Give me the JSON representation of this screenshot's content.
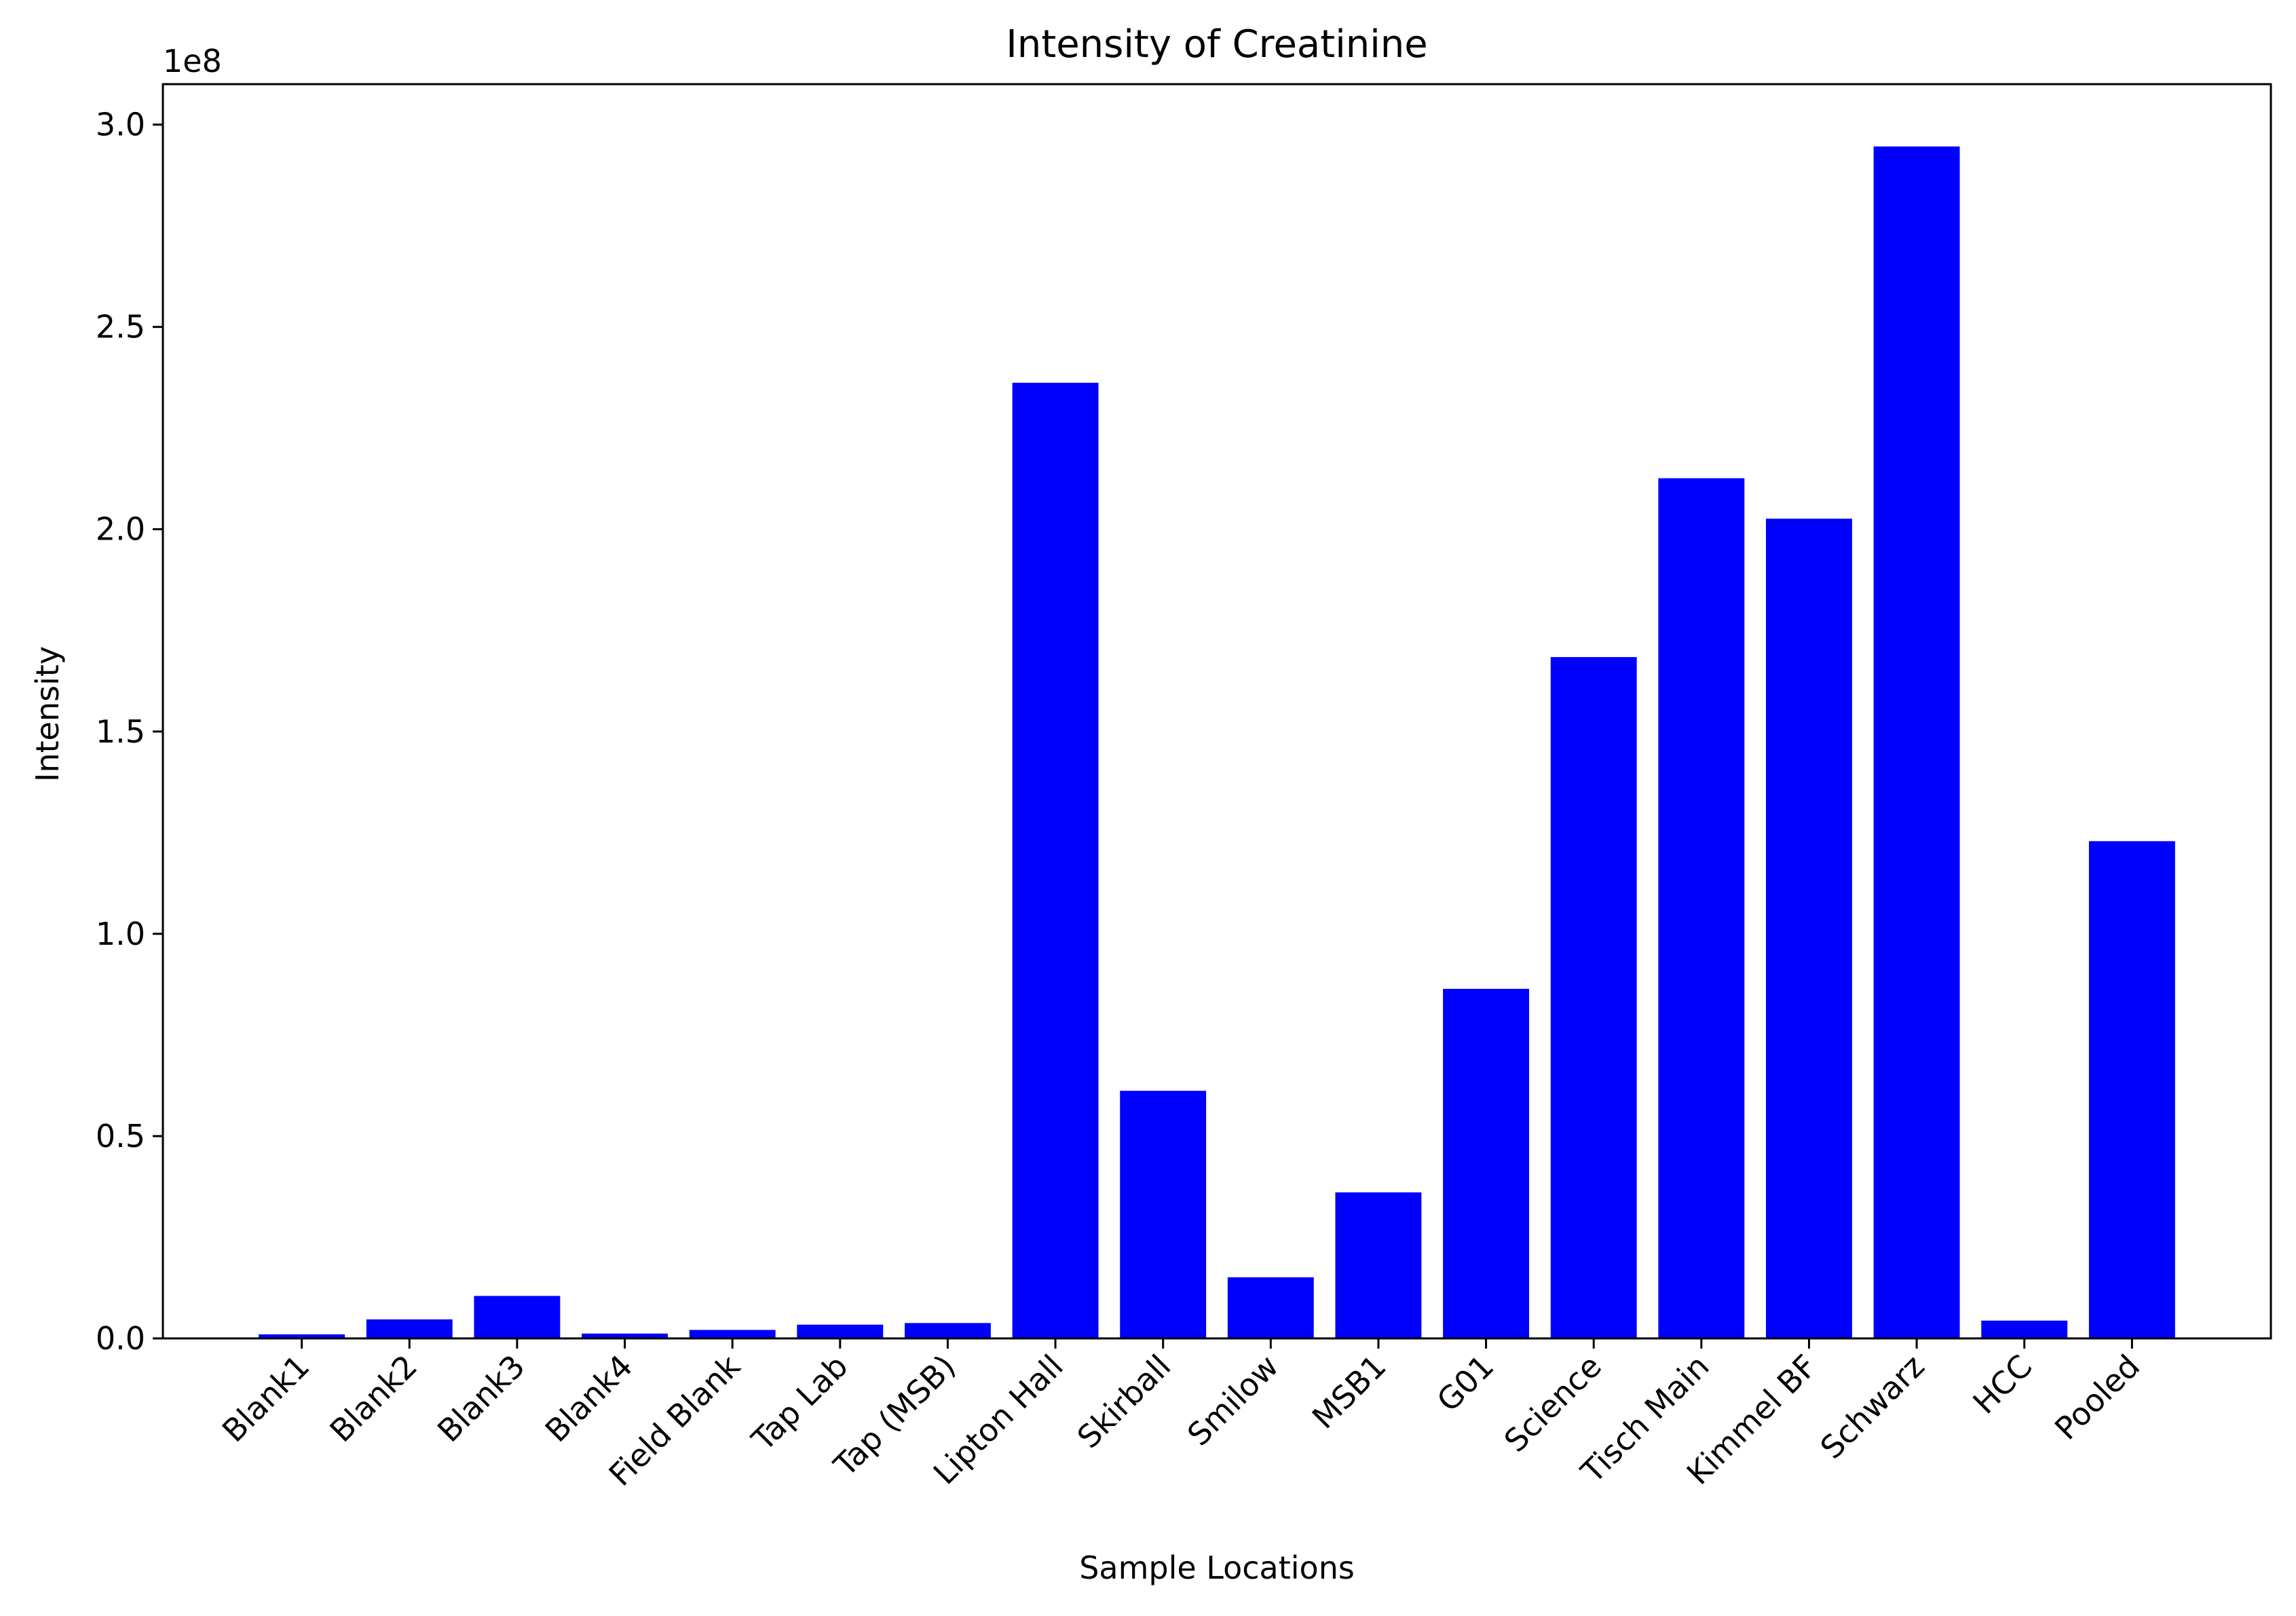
{
  "chart_data": {
    "type": "bar",
    "title": "Intensity of Creatinine",
    "xlabel": "Sample Locations",
    "ylabel": "Intensity",
    "y_offset_label": "1e8",
    "y_scale_divisor": 100000000,
    "categories": [
      "Blank1",
      "Blank2",
      "Blank3",
      "Blank4",
      "Field Blank",
      "Tap Lab",
      "Tap (MSB)",
      "Lipton Hall",
      "Skirball",
      "Smilow",
      "MSB1",
      "G01",
      "Science",
      "Tisch Main",
      "Kimmel BF",
      "Schwarz",
      "HCC",
      "Pooled"
    ],
    "values": [
      1000000,
      4700000,
      10500000,
      1200000,
      2100000,
      3400000,
      3800000,
      236200000,
      61200000,
      15100000,
      36100000,
      86400000,
      168400000,
      212600000,
      202600000,
      294600000,
      4400000,
      122900000
    ],
    "ylim": [
      0,
      310000000
    ],
    "yticks": [
      0,
      50000000,
      100000000,
      150000000,
      200000000,
      250000000,
      300000000
    ],
    "ytick_labels": [
      "0.0",
      "0.5",
      "1.0",
      "1.5",
      "2.0",
      "2.5",
      "3.0"
    ],
    "bar_color": "#0000ff",
    "grid": false,
    "legend": "none"
  }
}
